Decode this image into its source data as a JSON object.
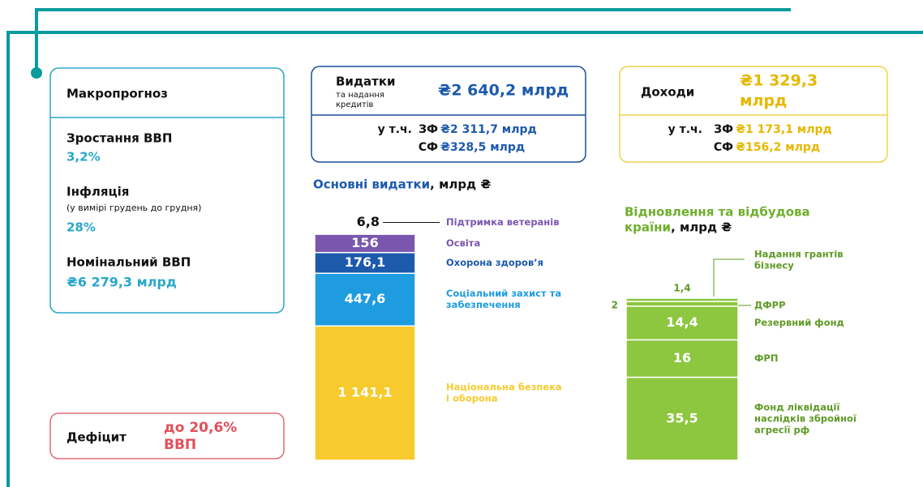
{
  "macro": {
    "title": "Макропрогноз",
    "items": [
      {
        "label": "Зростання ВВП",
        "value": "3,2%"
      },
      {
        "label": "Інфляція",
        "note": "(у вимірі грудень до грудня)",
        "value": "28%"
      },
      {
        "label": "Номінальний ВВП",
        "value": "₴6 279,3 млрд"
      }
    ]
  },
  "deficit": {
    "label": "Дефіцит",
    "value": [
      "до 20,6%",
      "ВВП"
    ]
  },
  "expenses": {
    "title": "Видатки",
    "subtitle": [
      "та надання",
      "кредитів"
    ],
    "total": "₴2 640,2 млрд",
    "incl": "у т.ч.",
    "parts": [
      {
        "fund": "ЗФ",
        "value": "₴2 311,7 млрд"
      },
      {
        "fund": "СФ",
        "value": "₴328,5 млрд"
      }
    ]
  },
  "revenue": {
    "title": "Доходи",
    "total": [
      "₴1 329,3",
      "млрд"
    ],
    "incl": "у т.ч.",
    "parts": [
      {
        "fund": "ЗФ",
        "value": "₴1 173,1 млрд"
      },
      {
        "fund": "СФ",
        "value": "₴156,2 млрд"
      }
    ]
  },
  "chart_data": [
    {
      "type": "stacked_bar",
      "title": [
        "Основні видатки"
      ],
      "title_unit": ", млрд ₴",
      "series": [
        {
          "name": [
            "Національна безпека",
            "і оборона"
          ],
          "color": "#f7cb2d",
          "values": [
            1141.1
          ],
          "value_labels": [
            "1 141,1"
          ]
        },
        {
          "name": [
            "Соціальний захист та",
            "забезпечення"
          ],
          "color": "#1f9ce0",
          "values": [
            447.6
          ],
          "value_labels": [
            "447,6"
          ]
        },
        {
          "name": [
            "Охорона здоров’я"
          ],
          "color": "#1c5aab",
          "values": [
            176.1
          ],
          "value_labels": [
            "176,1"
          ]
        },
        {
          "name": [
            "Освіта"
          ],
          "color": "#7a56ae",
          "values": [
            156
          ],
          "value_labels": [
            "156"
          ]
        },
        {
          "name": [
            "Підтримка ветеранів"
          ],
          "color": "#7a56ae",
          "values": [
            6.8
          ],
          "value_labels": [
            "6,8"
          ]
        }
      ]
    },
    {
      "type": "stacked_bar",
      "title": [
        "Відновлення та відбудова",
        "країни"
      ],
      "title_unit": ", млрд ₴",
      "series": [
        {
          "name": [
            "Фонд ліквідації",
            "наслідків збройної",
            "агресії рф"
          ],
          "color": "#8dc63f",
          "values": [
            35.5
          ],
          "value_labels": [
            "35,5"
          ]
        },
        {
          "name": [
            "ФРП"
          ],
          "color": "#8dc63f",
          "values": [
            16
          ]
        },
        {
          "name": [
            "Резервний фонд"
          ],
          "color": "#8dc63f",
          "values": [
            14.4
          ],
          "value_labels": [
            "14,4"
          ]
        },
        {
          "name": [
            "ДФРР"
          ],
          "color": "#8dc63f",
          "values": [
            2
          ]
        },
        {
          "name": [
            "Надання грантів",
            "бізнесу"
          ],
          "color": "#8dc63f",
          "values": [
            1.4
          ],
          "value_labels": [
            "1,4"
          ]
        }
      ]
    }
  ]
}
